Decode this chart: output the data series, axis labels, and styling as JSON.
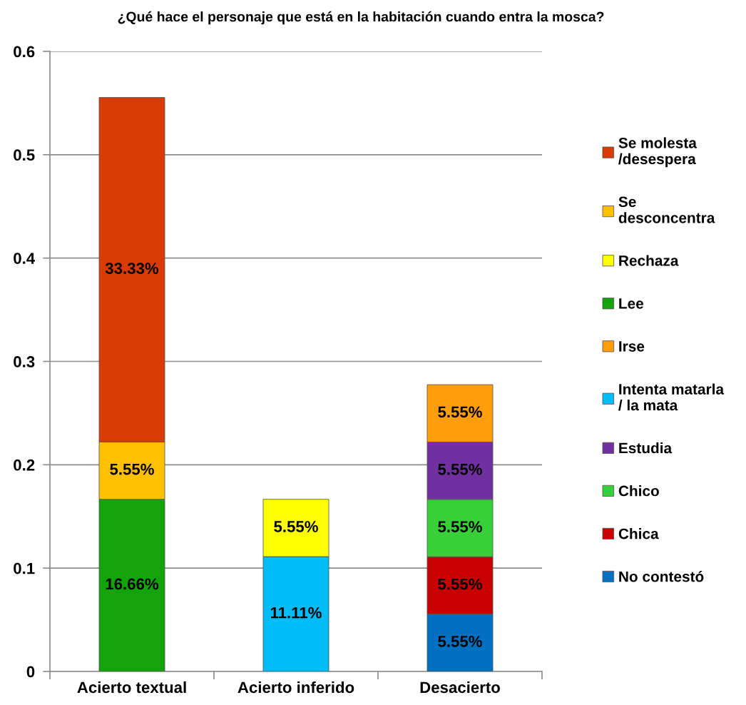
{
  "chart_data": {
    "type": "bar",
    "title": "¿Qué hace el personaje que está en la habitación cuando entra la mosca?",
    "categories": [
      "Acierto textual",
      "Acierto inferido",
      "Desacierto"
    ],
    "stacked": true,
    "ylim": [
      0,
      0.6
    ],
    "yticks": [
      0,
      0.1,
      0.2,
      0.3,
      0.4,
      0.5,
      0.6
    ],
    "grid": "y",
    "legend": "right",
    "series": [
      {
        "name": "No contestó",
        "color": "#0070c0",
        "values": [
          null,
          null,
          0.0555
        ],
        "value_labels": [
          null,
          null,
          "5.55%"
        ]
      },
      {
        "name": "Chica",
        "color": "#c80000",
        "values": [
          null,
          null,
          0.0555
        ],
        "value_labels": [
          null,
          null,
          "5.55%"
        ]
      },
      {
        "name": "Chico",
        "color": "#38d038",
        "values": [
          null,
          null,
          0.0555
        ],
        "value_labels": [
          null,
          null,
          "5.55%"
        ]
      },
      {
        "name": "Estudia",
        "color": "#7030a0",
        "values": [
          null,
          null,
          0.0555
        ],
        "value_labels": [
          null,
          null,
          "5.55%"
        ]
      },
      {
        "name": "Intenta matarla\n/ la mata",
        "color": "#00bcf8",
        "values": [
          null,
          0.1111,
          null
        ],
        "value_labels": [
          null,
          "11.11%",
          null
        ]
      },
      {
        "name": "Irse",
        "color": "#ff9d0a",
        "values": [
          null,
          null,
          0.0555
        ],
        "value_labels": [
          null,
          null,
          "5.55%"
        ]
      },
      {
        "name": "Lee",
        "color": "#12a40a",
        "values": [
          0.1666,
          null,
          null
        ],
        "value_labels": [
          "16.66%",
          null,
          null
        ]
      },
      {
        "name": "Rechaza",
        "color": "#ffff00",
        "values": [
          null,
          0.0555,
          null
        ],
        "value_labels": [
          null,
          "5.55%",
          null
        ]
      },
      {
        "name": "Se\ndesconcentra",
        "color": "#ffc000",
        "values": [
          0.0555,
          null,
          null
        ],
        "value_labels": [
          "5.55%",
          null,
          null
        ]
      },
      {
        "name": "Se molesta\n/desespera",
        "color": "#d83b04",
        "values": [
          0.3333,
          null,
          null
        ],
        "value_labels": [
          "33.33%",
          null,
          null
        ]
      }
    ]
  }
}
